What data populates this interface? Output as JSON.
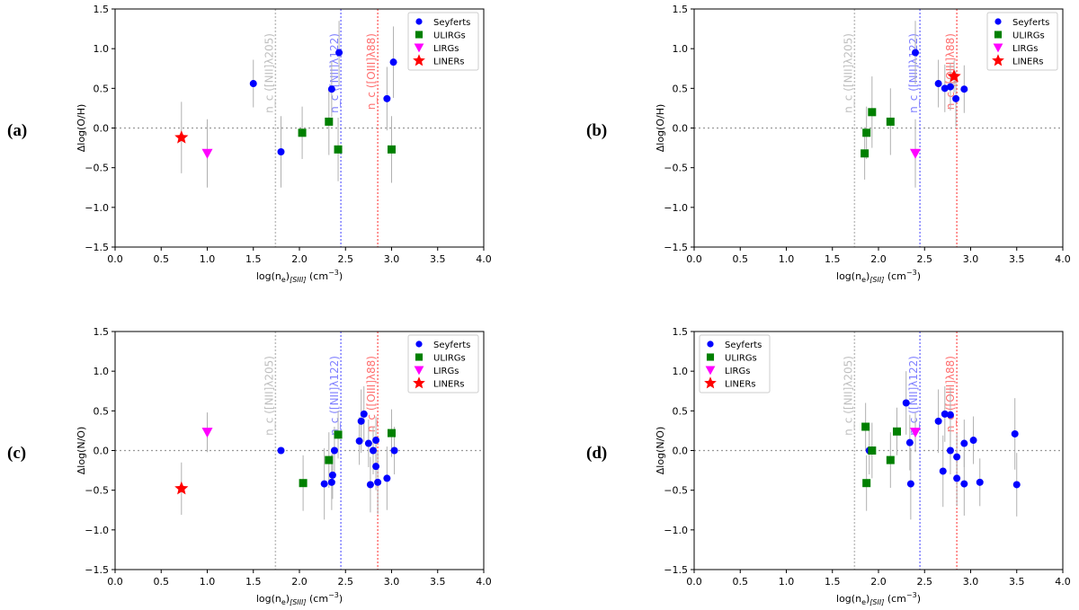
{
  "figure": {
    "legend_entries": [
      {
        "name": "Seyferts",
        "color": "#0000ff",
        "marker": "circle"
      },
      {
        "name": "ULIRGs",
        "color": "#008000",
        "marker": "square"
      },
      {
        "name": "LIRGs",
        "color": "#ff00ff",
        "marker": "triangle-down"
      },
      {
        "name": "LINERs",
        "color": "#ff0000",
        "marker": "star"
      }
    ],
    "critical_density_lines": [
      {
        "label": "n_c ([NII]λ205)",
        "x": 1.74,
        "color": "#bfbfbf"
      },
      {
        "label": "n_c ([NII]λ122)",
        "x": 2.45,
        "color": "#8080ff"
      },
      {
        "label": "n_c ([OIII]λ88)",
        "x": 2.85,
        "color": "#ff7070"
      }
    ],
    "x_ticks": [
      "0.0",
      "0.5",
      "1.0",
      "1.5",
      "2.0",
      "2.5",
      "3.0",
      "3.5",
      "4.0"
    ],
    "y_ticks": [
      "1.5",
      "1.0",
      "0.5",
      "0.0",
      "-0.5",
      "-1.0",
      "-1.5"
    ]
  },
  "chart_data": [
    {
      "panel": "(a)",
      "type": "scatter",
      "xlabel": "log(n_e)_[SIII] (cm^-3)",
      "ylabel": "Δlog(O/H)",
      "xlim": [
        0,
        4
      ],
      "ylim": [
        -1.5,
        1.5
      ],
      "zero_line": true,
      "legend_position": "upper-right",
      "series": [
        {
          "name": "Seyferts",
          "points": [
            [
              1.5,
              0.56,
              0.3
            ],
            [
              1.8,
              -0.3,
              0.45
            ],
            [
              2.35,
              0.49,
              0.35
            ],
            [
              2.43,
              0.95,
              0.4
            ],
            [
              2.95,
              0.37,
              0.4
            ],
            [
              3.02,
              0.83,
              0.45
            ]
          ]
        },
        {
          "name": "ULIRGs",
          "points": [
            [
              2.03,
              -0.06,
              0.33
            ],
            [
              2.32,
              0.08,
              0.42
            ],
            [
              2.42,
              -0.27,
              0.4
            ],
            [
              3.0,
              -0.27,
              0.42
            ]
          ]
        },
        {
          "name": "LIRGs",
          "points": [
            [
              1.0,
              -0.32,
              0.43
            ]
          ]
        },
        {
          "name": "LINERs",
          "points": [
            [
              0.72,
              -0.12,
              0.45
            ]
          ]
        }
      ]
    },
    {
      "panel": "(b)",
      "type": "scatter",
      "xlabel": "log(n_e)_[SII] (cm^-3)",
      "ylabel": "Δlog(O/H)",
      "xlim": [
        0,
        4
      ],
      "ylim": [
        -1.5,
        1.5
      ],
      "zero_line": true,
      "legend_position": "upper-right",
      "series": [
        {
          "name": "Seyferts",
          "points": [
            [
              2.4,
              0.95,
              0.4
            ],
            [
              2.65,
              0.56,
              0.3
            ],
            [
              2.72,
              0.5,
              0.3
            ],
            [
              2.78,
              0.52,
              0.3
            ],
            [
              2.84,
              0.37,
              0.35
            ],
            [
              2.93,
              0.49,
              0.3
            ]
          ]
        },
        {
          "name": "ULIRGs",
          "points": [
            [
              1.85,
              -0.32,
              0.33
            ],
            [
              1.87,
              -0.06,
              0.33
            ],
            [
              1.93,
              0.2,
              0.45
            ],
            [
              2.13,
              0.08,
              0.42
            ]
          ]
        },
        {
          "name": "LIRGs",
          "points": [
            [
              2.4,
              -0.32,
              0.43
            ]
          ]
        },
        {
          "name": "LINERs",
          "points": [
            [
              2.82,
              0.65,
              0.2
            ]
          ]
        }
      ]
    },
    {
      "panel": "(c)",
      "type": "scatter",
      "xlabel": "log(n_e)_[SIII] (cm^-3)",
      "ylabel": "Δlog(N/O)",
      "xlim": [
        0,
        4
      ],
      "ylim": [
        -1.5,
        1.5
      ],
      "zero_line": true,
      "legend_position": "upper-right",
      "series": [
        {
          "name": "Seyferts",
          "points": [
            [
              1.8,
              0.0,
              0
            ],
            [
              2.27,
              -0.42,
              0.45
            ],
            [
              2.35,
              -0.4,
              0.35
            ],
            [
              2.36,
              -0.31,
              0.3
            ],
            [
              2.38,
              0.0,
              0.3
            ],
            [
              2.65,
              0.12,
              0.3
            ],
            [
              2.67,
              0.37,
              0.4
            ],
            [
              2.7,
              0.46,
              0.35
            ],
            [
              2.75,
              0.09,
              0.3
            ],
            [
              2.77,
              -0.43,
              0.35
            ],
            [
              2.8,
              0.0,
              0.3
            ],
            [
              2.83,
              0.13,
              0.3
            ],
            [
              2.83,
              -0.2,
              0.3
            ],
            [
              2.85,
              -0.4,
              0.4
            ],
            [
              2.95,
              -0.35,
              0.4
            ],
            [
              3.03,
              0.0,
              0.3
            ]
          ]
        },
        {
          "name": "ULIRGs",
          "points": [
            [
              2.04,
              -0.41,
              0.35
            ],
            [
              2.32,
              -0.12,
              0.35
            ],
            [
              2.42,
              0.2,
              0.3
            ],
            [
              3.0,
              0.22,
              0.3
            ]
          ]
        },
        {
          "name": "LIRGs",
          "points": [
            [
              1.0,
              0.23,
              0.25
            ]
          ]
        },
        {
          "name": "LINERs",
          "points": [
            [
              0.72,
              -0.48,
              0.33
            ]
          ]
        }
      ]
    },
    {
      "panel": "(d)",
      "type": "scatter",
      "xlabel": "log(n_e)_[SII] (cm^-3)",
      "ylabel": "Δlog(N/O)",
      "xlim": [
        0,
        4
      ],
      "ylim": [
        -1.5,
        1.5
      ],
      "zero_line": true,
      "legend_position": "upper-left",
      "series": [
        {
          "name": "Seyferts",
          "points": [
            [
              1.9,
              0.0,
              0.3
            ],
            [
              2.3,
              0.6,
              0.4
            ],
            [
              2.34,
              0.1,
              0.35
            ],
            [
              2.35,
              -0.42,
              0.45
            ],
            [
              2.65,
              0.37,
              0.4
            ],
            [
              2.7,
              -0.26,
              0.45
            ],
            [
              2.72,
              0.46,
              0.35
            ],
            [
              2.78,
              0.45,
              0.35
            ],
            [
              2.78,
              0.0,
              0.3
            ],
            [
              2.85,
              -0.08,
              0.3
            ],
            [
              2.85,
              -0.35,
              0.35
            ],
            [
              2.93,
              0.09,
              0.3
            ],
            [
              2.93,
              -0.42,
              0.4
            ],
            [
              3.03,
              0.13,
              0.3
            ],
            [
              3.1,
              -0.4,
              0.3
            ],
            [
              3.48,
              0.21,
              0.45
            ],
            [
              3.5,
              -0.43,
              0.4
            ]
          ]
        },
        {
          "name": "ULIRGs",
          "points": [
            [
              1.86,
              0.3,
              0.3
            ],
            [
              1.87,
              -0.41,
              0.35
            ],
            [
              1.93,
              0.0,
              0.35
            ],
            [
              2.13,
              -0.12,
              0.35
            ],
            [
              2.2,
              0.24,
              0.3
            ]
          ]
        },
        {
          "name": "LIRGs",
          "points": [
            [
              2.4,
              0.23,
              0.25
            ]
          ]
        },
        {
          "name": "LINERs",
          "points": []
        }
      ]
    }
  ]
}
